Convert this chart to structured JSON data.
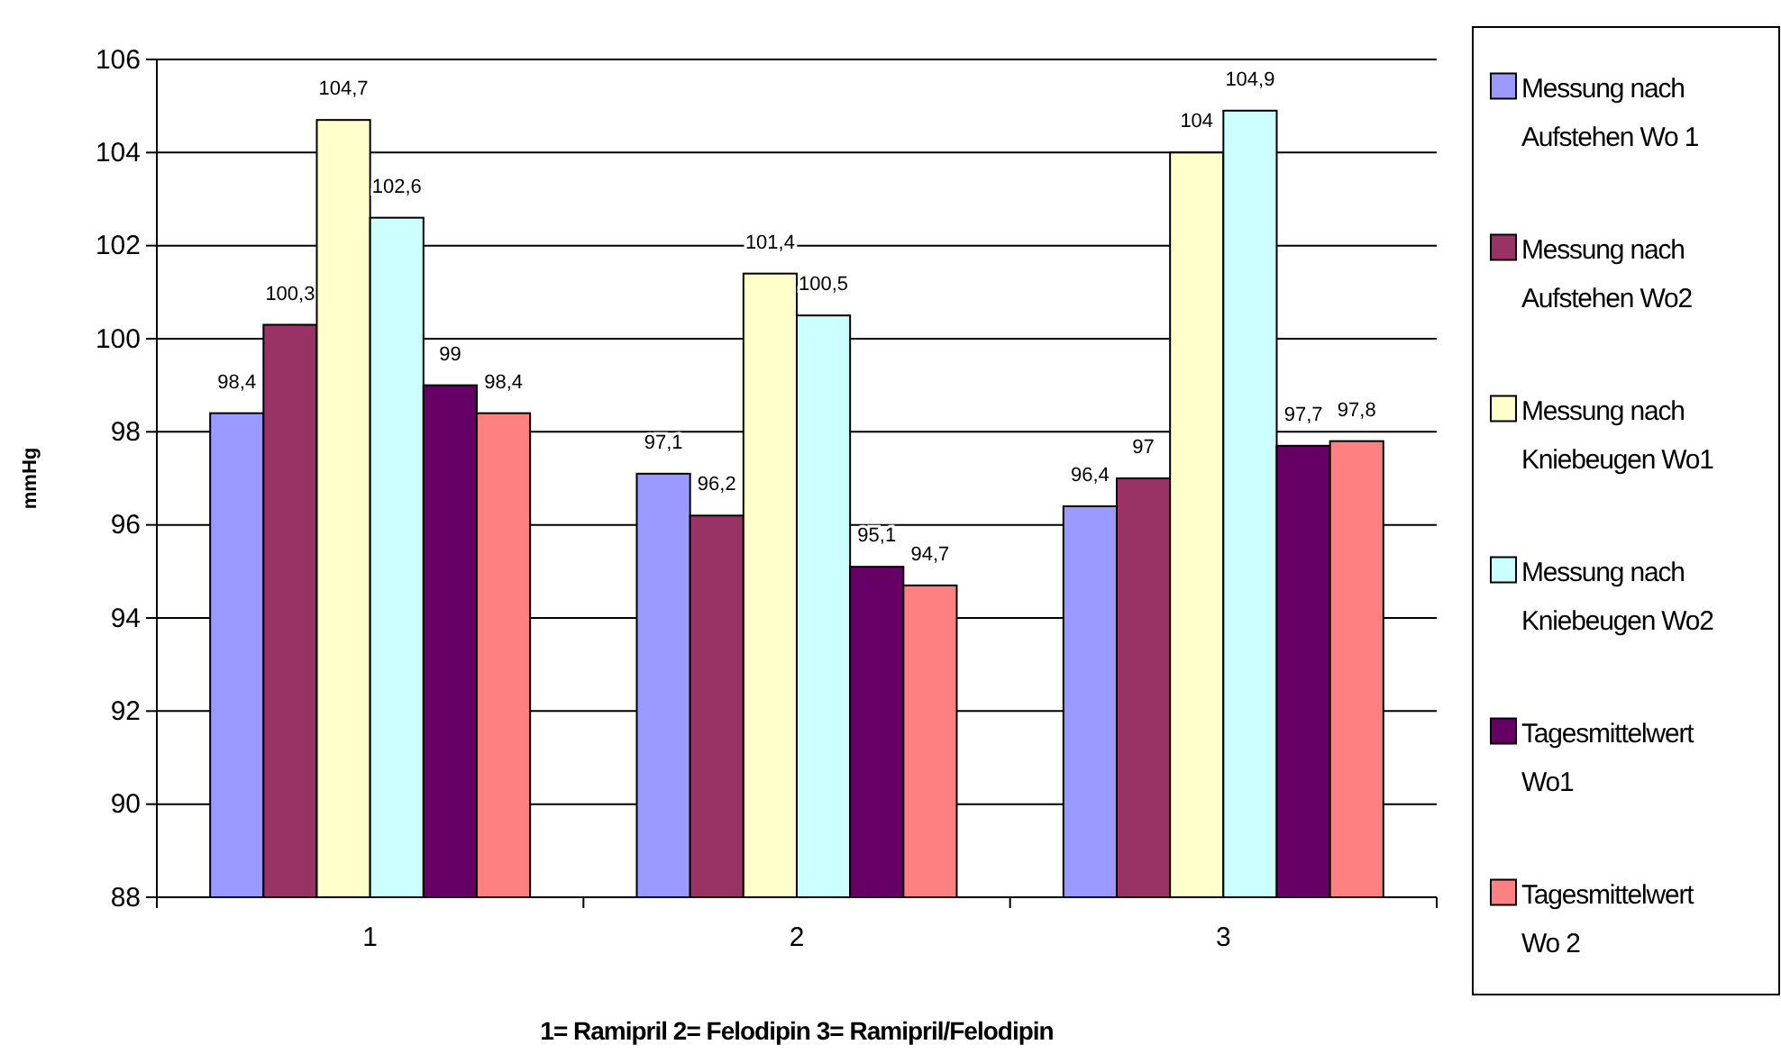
{
  "chart_data": {
    "type": "bar",
    "xlabel": "1= Ramipril   2= Felodipin 3= Ramipril/Felodipin",
    "ylabel": "mmHg",
    "categories": [
      "1",
      "2",
      "3"
    ],
    "series": [
      {
        "name": "Messung nach Aufstehen Wo 1",
        "color": "#9999ff",
        "values": [
          98.4,
          97.1,
          96.4
        ],
        "value_labels": [
          "98,4",
          "97,1",
          "96,4"
        ]
      },
      {
        "name": "Messung nach Aufstehen Wo2",
        "color": "#993366",
        "values": [
          100.3,
          96.2,
          97
        ],
        "value_labels": [
          "100,3",
          "96,2",
          "97"
        ]
      },
      {
        "name": "Messung nach Kniebeugen Wo1",
        "color": "#ffffcc",
        "values": [
          104.7,
          101.4,
          104
        ],
        "value_labels": [
          "104,7",
          "101,4",
          "104"
        ]
      },
      {
        "name": "Messung nach Kniebeugen Wo2",
        "color": "#ccffff",
        "values": [
          102.6,
          100.5,
          104.9
        ],
        "value_labels": [
          "102,6",
          "100,5",
          "104,9"
        ]
      },
      {
        "name": "Tagesmittelwert Wo1",
        "color": "#660066",
        "values": [
          99,
          95.1,
          97.7
        ],
        "value_labels": [
          "99",
          "95,1",
          "97,7"
        ]
      },
      {
        "name": "Tagesmittelwert Wo 2",
        "color": "#ff8080",
        "values": [
          98.4,
          94.7,
          97.8
        ],
        "value_labels": [
          "98,4",
          "94,7",
          "97,8"
        ]
      }
    ],
    "ylim": [
      88,
      106
    ],
    "yticks": [
      88,
      90,
      92,
      94,
      96,
      98,
      100,
      102,
      104,
      106
    ],
    "grid": "y",
    "legend": "right"
  }
}
